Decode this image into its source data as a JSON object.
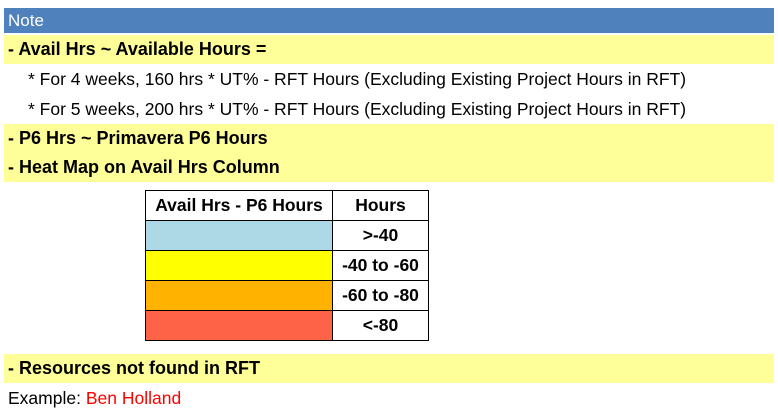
{
  "note_header": "Note",
  "avail_hrs_title": "- Avail Hrs ~ Available Hours =",
  "avail_hrs_line1": "* For 4 weeks, 160 hrs * UT% - RFT Hours (Excluding Existing Project Hours in RFT)",
  "avail_hrs_line2": "* For 5 weeks, 200 hrs * UT% - RFT Hours (Excluding Existing Project Hours in RFT)",
  "p6_hrs": "- P6 Hrs ~ Primavera P6 Hours",
  "heat_map_title": "- Heat Map on Avail Hrs Column",
  "legend": {
    "col1_header": "Avail Hrs - P6 Hours",
    "col2_header": "Hours",
    "rows": [
      {
        "color": "#add8e6",
        "hours": ">-40"
      },
      {
        "color": "#ffff00",
        "hours": "-40 to -60"
      },
      {
        "color": "#ffb300",
        "hours": "-60 to -80"
      },
      {
        "color": "#ff6347",
        "hours": "<-80"
      }
    ]
  },
  "resources_not_found": "- Resources not found in RFT",
  "example_label": "Example:",
  "example_name": "Ben Holland",
  "colors": {
    "header_bg": "#4f81bd",
    "highlight_bg": "#ffff99",
    "example_name": "#ff0000"
  }
}
